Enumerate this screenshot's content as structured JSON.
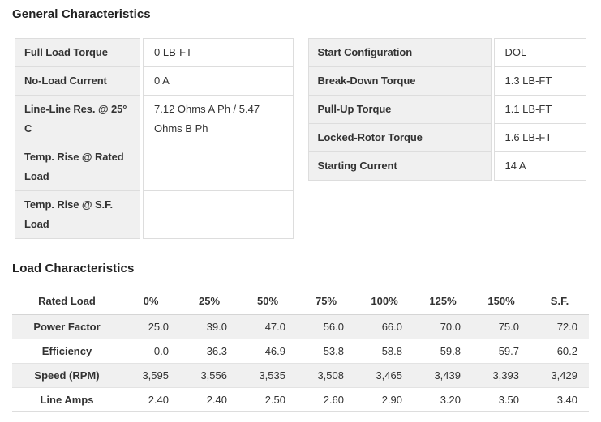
{
  "sections": {
    "general_heading": "General Characteristics",
    "load_heading": "Load Characteristics"
  },
  "general": {
    "left": [
      {
        "label": "Full Load Torque",
        "value": "0 LB-FT"
      },
      {
        "label": "No-Load Current",
        "value": "0 A"
      },
      {
        "label": "Line-Line Res. @ 25° C",
        "value": "7.12 Ohms A Ph / 5.47 Ohms B Ph"
      },
      {
        "label": "Temp. Rise @ Rated Load",
        "value": ""
      },
      {
        "label": "Temp. Rise @ S.F. Load",
        "value": ""
      }
    ],
    "right": [
      {
        "label": "Start Configuration",
        "value": "DOL"
      },
      {
        "label": "Break-Down Torque",
        "value": "1.3 LB-FT"
      },
      {
        "label": "Pull-Up Torque",
        "value": "1.1 LB-FT"
      },
      {
        "label": "Locked-Rotor Torque",
        "value": "1.6 LB-FT"
      },
      {
        "label": "Starting Current",
        "value": "14 A"
      }
    ]
  },
  "load": {
    "headers": [
      "Rated Load",
      "0%",
      "25%",
      "50%",
      "75%",
      "100%",
      "125%",
      "150%",
      "S.F."
    ],
    "rows": [
      {
        "label": "Power Factor",
        "values": [
          "25.0",
          "39.0",
          "47.0",
          "56.0",
          "66.0",
          "70.0",
          "75.0",
          "72.0"
        ]
      },
      {
        "label": "Efficiency",
        "values": [
          "0.0",
          "36.3",
          "46.9",
          "53.8",
          "58.8",
          "59.8",
          "59.7",
          "60.2"
        ]
      },
      {
        "label": "Speed (RPM)",
        "values": [
          "3,595",
          "3,556",
          "3,535",
          "3,508",
          "3,465",
          "3,439",
          "3,393",
          "3,429"
        ]
      },
      {
        "label": "Line Amps",
        "values": [
          "2.40",
          "2.40",
          "2.50",
          "2.60",
          "2.90",
          "3.20",
          "3.50",
          "3.40"
        ]
      }
    ]
  },
  "colors": {
    "heading_text": "#222222",
    "body_text": "#333333",
    "label_cell_bg": "#f0f0f0",
    "stripe_bg": "#f0f0f0",
    "table_border": "#dddddd"
  }
}
